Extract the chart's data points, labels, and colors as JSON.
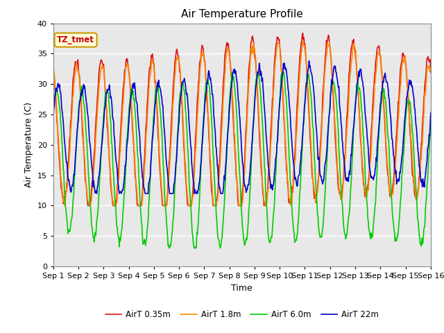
{
  "title": "Air Temperature Profile",
  "xlabel": "Time",
  "ylabel": "Air Temperature (C)",
  "ylim": [
    0,
    40
  ],
  "background_color": "#e8e8e8",
  "grid_color": "white",
  "annotation_text": "TZ_tmet",
  "annotation_color": "#cc0000",
  "annotation_bg": "#ffffdd",
  "annotation_border": "#cc9900",
  "series": [
    {
      "label": "AirT 0.35m",
      "color": "#dd1111",
      "lw": 1.2
    },
    {
      "label": "AirT 1.8m",
      "color": "#ff8800",
      "lw": 1.2
    },
    {
      "label": "AirT 6.0m",
      "color": "#00cc00",
      "lw": 1.2
    },
    {
      "label": "AirT 22m",
      "color": "#0000cc",
      "lw": 1.2
    }
  ],
  "xtick_labels": [
    "Sep 1",
    "Sep 2",
    "Sep 3",
    "Sep 4",
    "Sep 5",
    "Sep 6",
    "Sep 7",
    "Sep 8",
    "Sep 9",
    "Sep 10",
    "Sep 11",
    "Sep 12",
    "Sep 13",
    "Sep 14",
    "Sep 15",
    "Sep 16"
  ],
  "xtick_positions": [
    0,
    1,
    2,
    3,
    4,
    5,
    6,
    7,
    8,
    9,
    10,
    11,
    12,
    13,
    14,
    15
  ],
  "ytick_positions": [
    0,
    5,
    10,
    15,
    20,
    25,
    30,
    35,
    40
  ]
}
